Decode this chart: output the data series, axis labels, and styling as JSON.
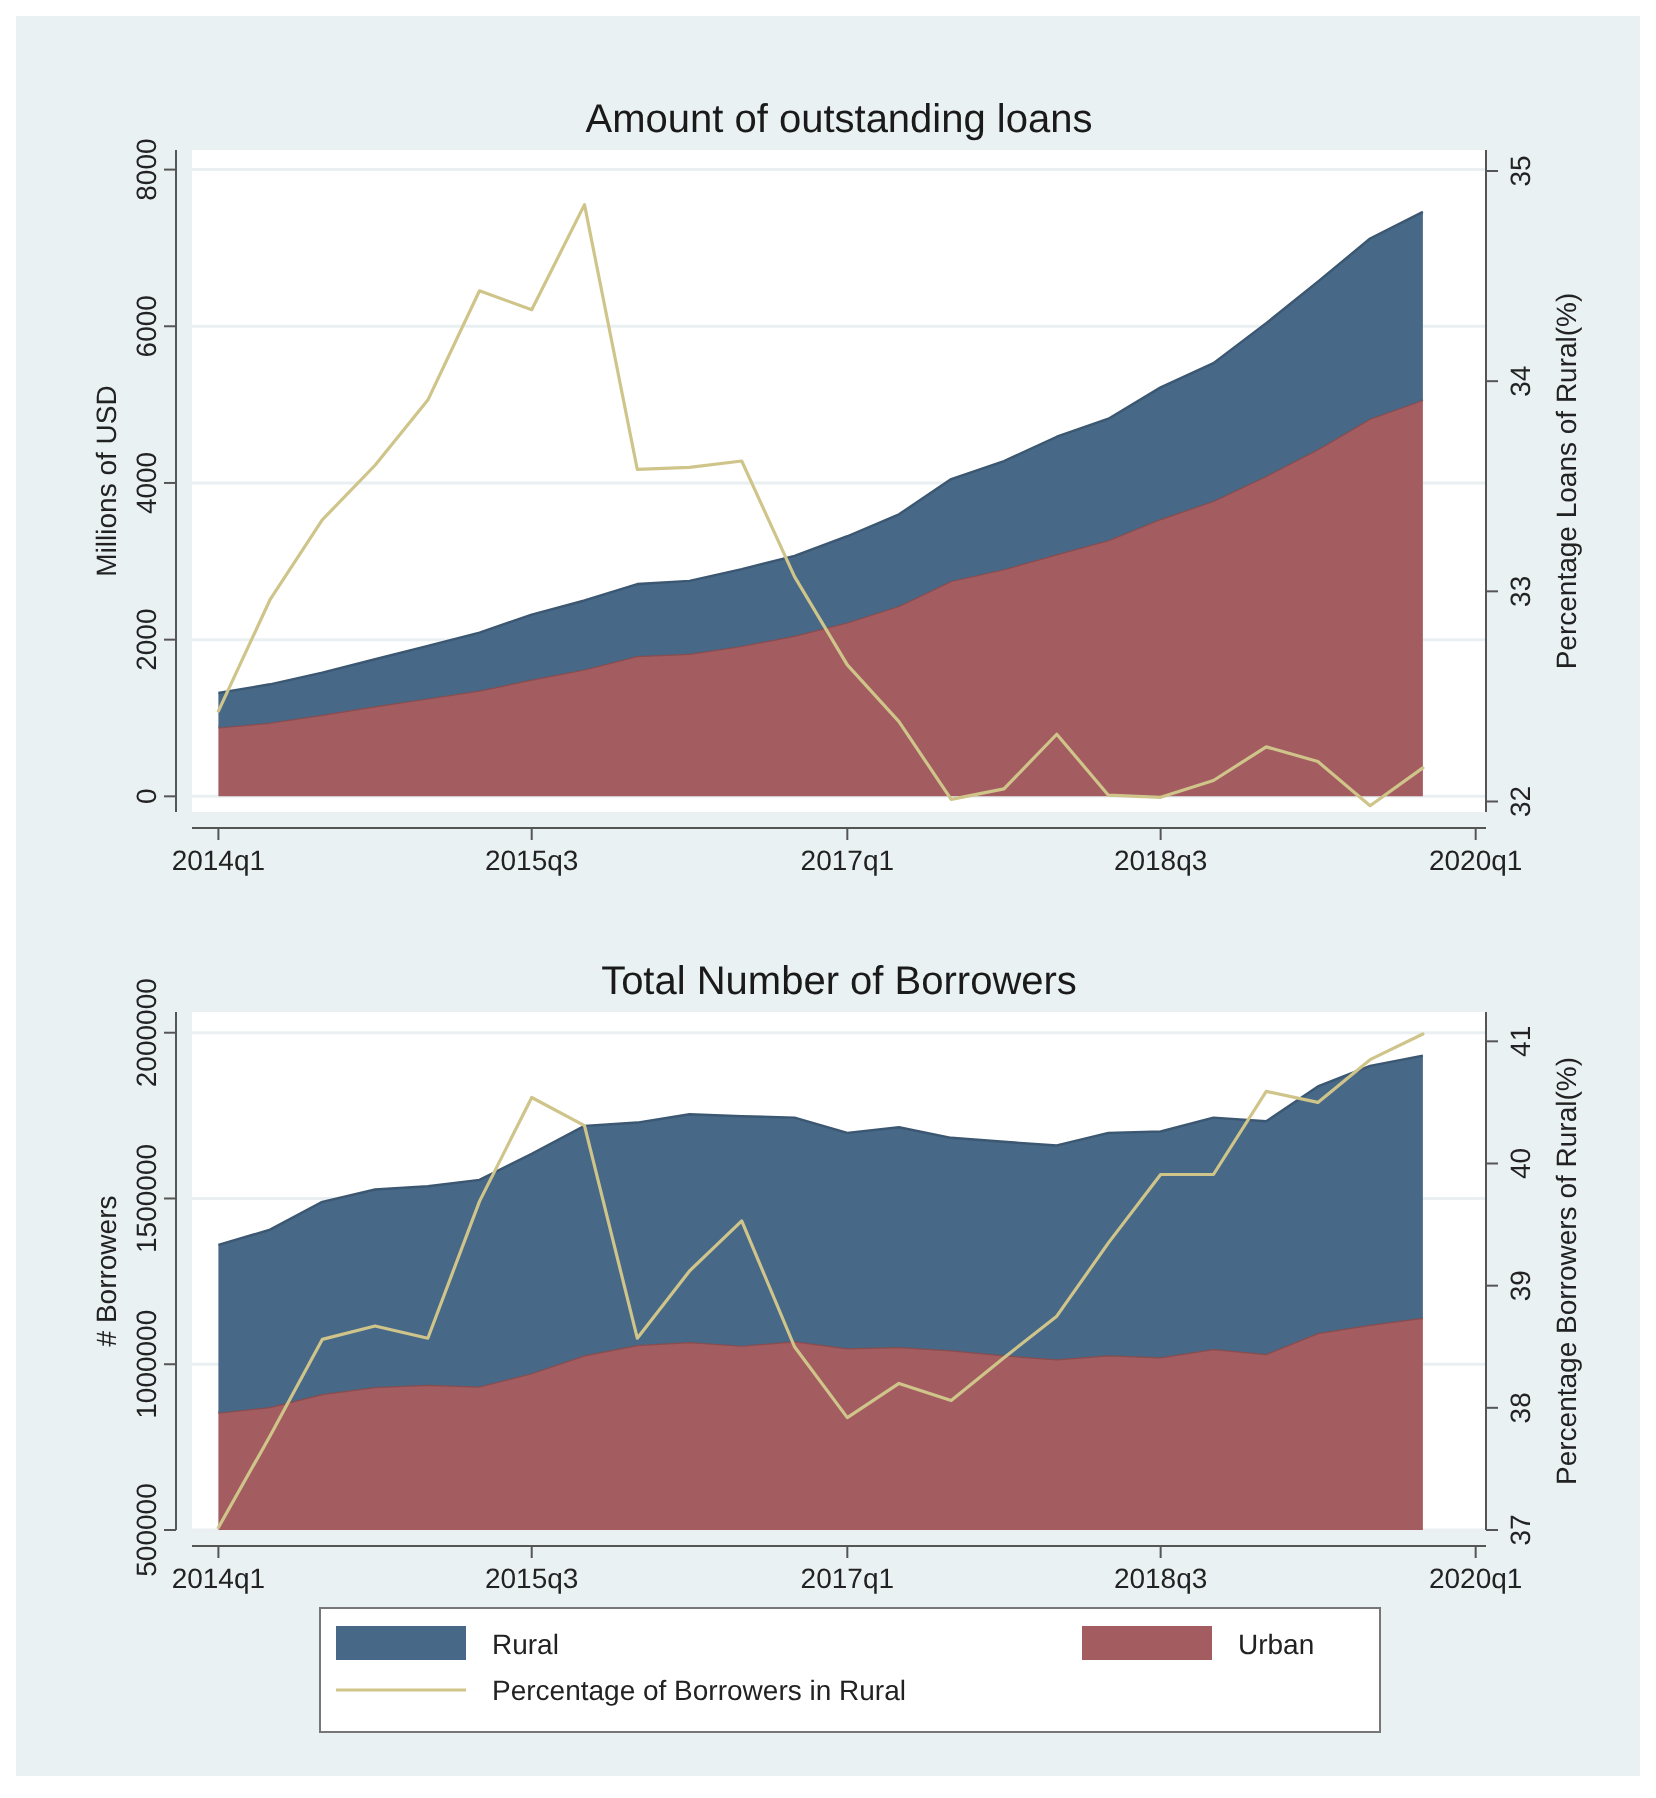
{
  "chart_data": [
    {
      "type": "area",
      "title": "Amount of outstanding loans",
      "ylabel": "Millions of USD",
      "y2label": "Percentage Loans of Rural(%)",
      "stacked": true,
      "grid": "y",
      "x": [
        "2014-01",
        "2014-04",
        "2014-07",
        "2014-10",
        "2015-01",
        "2015-04",
        "2015-07",
        "2015-10",
        "2016-01",
        "2016-04",
        "2016-07",
        "2016-10",
        "2017-01",
        "2017-04",
        "2017-07",
        "2017-10",
        "2018-01",
        "2018-04",
        "2018-07",
        "2018-10",
        "2019-01",
        "2019-04",
        "2019-07",
        "2019-10"
      ],
      "xlim": [
        "2013-11-16",
        "2020-01-19"
      ],
      "xticks": [
        {
          "value": "2014-01",
          "label": "2014q1"
        },
        {
          "value": "2015-07",
          "label": "2015q3"
        },
        {
          "value": "2017-01",
          "label": "2017q1"
        },
        {
          "value": "2018-07",
          "label": "2018q3"
        },
        {
          "value": "2020-01",
          "label": "2020q1"
        }
      ],
      "ylim": [
        -200,
        8250
      ],
      "yticks": [
        0,
        2000,
        4000,
        6000,
        8000
      ],
      "y2lim": [
        31.95,
        35.1
      ],
      "y2ticks": [
        32,
        33,
        34,
        35
      ],
      "series": [
        {
          "color": "#a35c5f",
          "values": [
            880,
            940,
            1040,
            1150,
            1250,
            1350,
            1490,
            1620,
            1790,
            1820,
            1920,
            2050,
            2220,
            2430,
            2750,
            2900,
            3090,
            3270,
            3540,
            3770,
            4090,
            4430,
            4820,
            5060
          ]
        },
        {
          "color": "#476887",
          "values": [
            440,
            490,
            540,
            600,
            670,
            740,
            830,
            880,
            920,
            930,
            980,
            1020,
            1100,
            1170,
            1300,
            1380,
            1500,
            1550,
            1680,
            1760,
            1950,
            2140,
            2300,
            2400
          ]
        },
        {
          "type": "line",
          "axis": "y2",
          "color": "#cfc58a",
          "values": [
            32.43,
            32.96,
            33.34,
            33.6,
            33.91,
            34.43,
            34.34,
            34.84,
            33.58,
            33.59,
            33.62,
            33.07,
            32.65,
            32.38,
            32.01,
            32.06,
            32.32,
            32.03,
            32.02,
            32.1,
            32.26,
            32.19,
            31.98,
            32.16
          ]
        }
      ]
    },
    {
      "type": "area",
      "title": "Total Number of Borrowers",
      "ylabel": "# Borrowers",
      "y2label": "Percentage Borrowers of Rural(%)",
      "stacked": true,
      "grid": "y",
      "legend": "bottom",
      "x": [
        "2014-01",
        "2014-04",
        "2014-07",
        "2014-10",
        "2015-01",
        "2015-04",
        "2015-07",
        "2015-10",
        "2016-01",
        "2016-04",
        "2016-07",
        "2016-10",
        "2017-01",
        "2017-04",
        "2017-07",
        "2017-10",
        "2018-01",
        "2018-04",
        "2018-07",
        "2018-10",
        "2019-01",
        "2019-04",
        "2019-07",
        "2019-10"
      ],
      "xlim": [
        "2013-11-16",
        "2020-01-19"
      ],
      "xticks": [
        {
          "value": "2014-01",
          "label": "2014q1"
        },
        {
          "value": "2015-07",
          "label": "2015q3"
        },
        {
          "value": "2017-01",
          "label": "2017q1"
        },
        {
          "value": "2018-07",
          "label": "2018q3"
        },
        {
          "value": "2020-01",
          "label": "2020q1"
        }
      ],
      "ylim": [
        500000,
        2062500
      ],
      "yticks": [
        500000,
        1000000,
        1500000,
        2000000
      ],
      "y2lim": [
        37,
        41.24
      ],
      "y2ticks": [
        37,
        38,
        39,
        40,
        41
      ],
      "series": [
        {
          "name": "Urban",
          "color": "#a35c5f",
          "values": [
            854000,
            871000,
            910000,
            931000,
            938000,
            933000,
            973000,
            1027000,
            1058000,
            1067000,
            1056000,
            1069000,
            1048000,
            1052000,
            1042000,
            1027000,
            1015000,
            1027000,
            1021000,
            1046000,
            1031000,
            1094000,
            1119000,
            1140000
          ]
        },
        {
          "name": "Rural",
          "color": "#476887",
          "values": [
            506000,
            535000,
            580000,
            596000,
            599000,
            623000,
            662000,
            692000,
            671000,
            687000,
            692000,
            675000,
            650000,
            663000,
            641000,
            644000,
            645000,
            671000,
            681000,
            698000,
            702000,
            744000,
            781000,
            791000
          ]
        },
        {
          "type": "line",
          "axis": "y2",
          "name": "Percentage of Borrowers in Rural",
          "color": "#cfc58a",
          "values": [
            37.02,
            37.77,
            38.56,
            38.67,
            38.57,
            39.69,
            40.54,
            40.31,
            38.57,
            39.12,
            39.53,
            38.5,
            37.92,
            38.2,
            38.06,
            38.41,
            38.75,
            39.35,
            39.91,
            39.91,
            40.59,
            40.5,
            40.85,
            41.06
          ]
        }
      ]
    }
  ]
}
